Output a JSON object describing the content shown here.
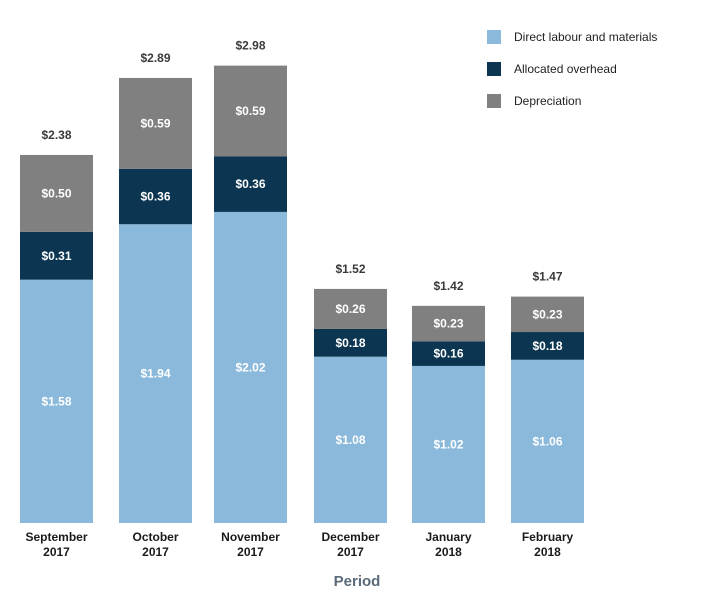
{
  "chart_data": {
    "type": "bar",
    "stacked": true,
    "categories": [
      [
        "September",
        "2017"
      ],
      [
        "October",
        "2017"
      ],
      [
        "November",
        "2017"
      ],
      [
        "December",
        "2017"
      ],
      [
        "January",
        "2018"
      ],
      [
        "February",
        "2018"
      ]
    ],
    "series": [
      {
        "name": "Direct labour and materials",
        "color": "#8ab9db",
        "values": [
          1.58,
          1.94,
          2.02,
          1.08,
          1.02,
          1.06
        ],
        "labels": [
          "$1.58",
          "$1.94",
          "$2.02",
          "$1.08",
          "$1.02",
          "$1.06"
        ]
      },
      {
        "name": "Allocated overhead",
        "color": "#0b3550",
        "values": [
          0.31,
          0.36,
          0.36,
          0.18,
          0.16,
          0.18
        ],
        "labels": [
          "$0.31",
          "$0.36",
          "$0.36",
          "$0.18",
          "$0.16",
          "$0.18"
        ]
      },
      {
        "name": "Depreciation",
        "color": "#808080",
        "values": [
          0.5,
          0.59,
          0.59,
          0.26,
          0.23,
          0.23
        ],
        "labels": [
          "$0.50",
          "$0.59",
          "$0.59",
          "$0.26",
          "$0.23",
          "$0.23"
        ]
      }
    ],
    "totals": [
      2.38,
      2.89,
      2.98,
      1.52,
      1.42,
      1.47
    ],
    "total_labels": [
      "$2.38",
      "$2.89",
      "$2.98",
      "$1.52",
      "$1.42",
      "$1.47"
    ],
    "title": "",
    "xlabel": "Period",
    "ylabel": "",
    "ylim": [
      0,
      3.2
    ],
    "grid": false,
    "legend": "top-right"
  }
}
